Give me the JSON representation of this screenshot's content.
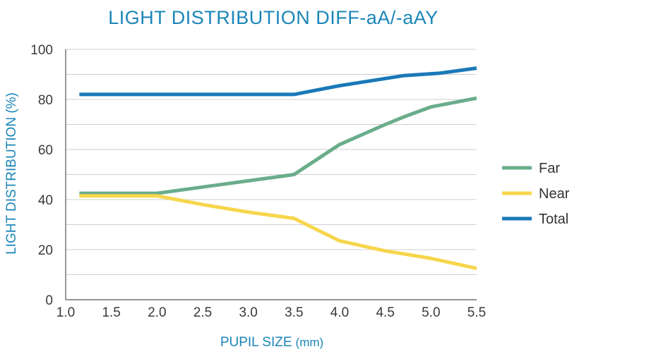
{
  "chart_data": {
    "type": "line",
    "title": "LIGHT DISTRIBUTION DIFF-aA/-aAY",
    "xlabel": "PUPIL SIZE",
    "xlabel_unit": "(mm)",
    "ylabel": "LIGHT DISTRIBUTION (%)",
    "xlim": [
      1.0,
      5.5
    ],
    "ylim": [
      0,
      100
    ],
    "x_ticks": [
      "1.0",
      "1.5",
      "2.0",
      "2.5",
      "3.0",
      "3.5",
      "4.0",
      "4.5",
      "5.0",
      "5.5"
    ],
    "y_ticks": [
      "0",
      "20",
      "40",
      "60",
      "80",
      "100"
    ],
    "y_gridlines": [
      10,
      20,
      30,
      40,
      50,
      60,
      70,
      80,
      90,
      100
    ],
    "grid": true,
    "legend_position": "right",
    "series": [
      {
        "name": "Far",
        "color": "#6aad8b",
        "points": [
          [
            1.15,
            42.5
          ],
          [
            2.0,
            42.5
          ],
          [
            2.3,
            44
          ],
          [
            2.7,
            46
          ],
          [
            3.1,
            48
          ],
          [
            3.3,
            49
          ],
          [
            3.5,
            50
          ],
          [
            4.0,
            62
          ],
          [
            4.5,
            70
          ],
          [
            4.7,
            73
          ],
          [
            5.0,
            77
          ],
          [
            5.5,
            80.5
          ]
        ]
      },
      {
        "name": "Near",
        "color": "#f7d64d",
        "points": [
          [
            1.15,
            41.5
          ],
          [
            2.0,
            41.5
          ],
          [
            2.5,
            38
          ],
          [
            3.0,
            35
          ],
          [
            3.5,
            32.5
          ],
          [
            4.0,
            23.5
          ],
          [
            4.5,
            19.5
          ],
          [
            5.0,
            16.5
          ],
          [
            5.5,
            12.5
          ]
        ]
      },
      {
        "name": "Total",
        "color": "#1a78b8",
        "points": [
          [
            1.15,
            82
          ],
          [
            3.5,
            82
          ],
          [
            4.0,
            85.5
          ],
          [
            4.7,
            89.5
          ],
          [
            5.1,
            90.5
          ],
          [
            5.5,
            92.5
          ]
        ]
      }
    ]
  }
}
